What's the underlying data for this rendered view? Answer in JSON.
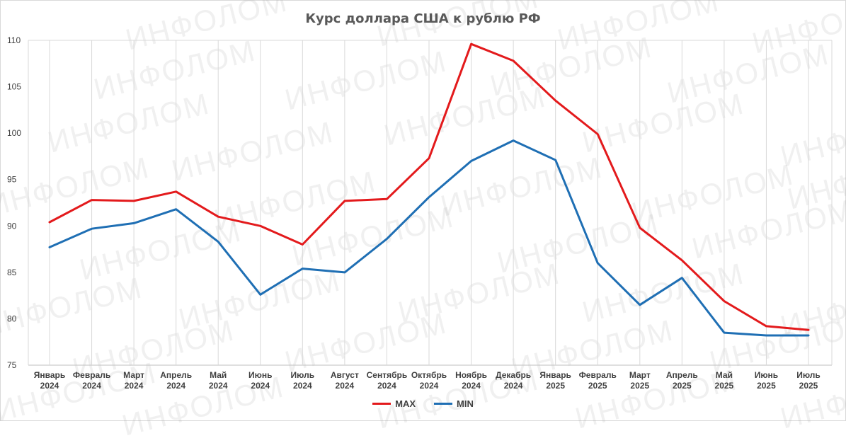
{
  "watermark_text": "ИНФОЛОМ",
  "chart_data": {
    "type": "line",
    "title": "Курс доллара США к рублю РФ",
    "xlabel": "",
    "ylabel": "",
    "ylim": [
      75,
      110
    ],
    "yticks": [
      75,
      80,
      85,
      90,
      95,
      100,
      105,
      110
    ],
    "grid": "vertical",
    "legend_position": "bottom",
    "categories": [
      [
        "Январь",
        "2024"
      ],
      [
        "Февраль",
        "2024"
      ],
      [
        "Март",
        "2024"
      ],
      [
        "Апрель",
        "2024"
      ],
      [
        "Май",
        "2024"
      ],
      [
        "Июнь",
        "2024"
      ],
      [
        "Июль",
        "2024"
      ],
      [
        "Август",
        "2024"
      ],
      [
        "Сентябрь",
        "2024"
      ],
      [
        "Октябрь",
        "2024"
      ],
      [
        "Ноябрь",
        "2024"
      ],
      [
        "Декабрь",
        "2024"
      ],
      [
        "Январь",
        "2025"
      ],
      [
        "Февраль",
        "2025"
      ],
      [
        "Март",
        "2025"
      ],
      [
        "Апрель",
        "2025"
      ],
      [
        "Май",
        "2025"
      ],
      [
        "Июнь",
        "2025"
      ],
      [
        "Июль",
        "2025"
      ]
    ],
    "series": [
      {
        "name": "MAX",
        "color": "#e31a1c",
        "values": [
          90.4,
          92.8,
          92.7,
          93.7,
          91.0,
          90.0,
          88.0,
          92.7,
          92.9,
          97.3,
          109.6,
          107.8,
          103.5,
          99.9,
          89.8,
          86.3,
          81.9,
          79.2,
          78.8
        ]
      },
      {
        "name": "MIN",
        "color": "#1f6fb4",
        "values": [
          87.7,
          89.7,
          90.3,
          91.8,
          88.3,
          82.6,
          85.4,
          85.0,
          88.6,
          93.1,
          97.0,
          99.2,
          97.1,
          86.0,
          81.5,
          84.4,
          78.5,
          78.2,
          78.2
        ]
      }
    ]
  }
}
